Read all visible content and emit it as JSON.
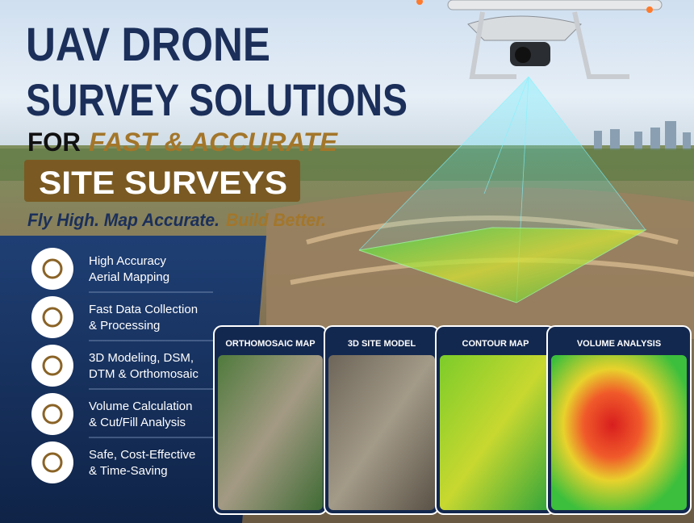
{
  "headline": {
    "line1": "UAV DRONE",
    "line2": "SURVEY SOLUTIONS",
    "line3_prefix": "FOR",
    "line3_highlight": "FAST & ACCURATE",
    "banner": "SITE SURVEYS"
  },
  "tagline": {
    "main": "Fly High. Map Accurate.",
    "highlight": "Build Better."
  },
  "features": [
    {
      "lines": [
        "High Accuracy",
        "Aerial Mapping"
      ]
    },
    {
      "lines": [
        "Fast Data Collection",
        "& Processing"
      ]
    },
    {
      "lines": [
        "3D Modeling, DSM,",
        "DTM & Orthomosaic"
      ]
    },
    {
      "lines": [
        "Volume Calculation",
        "& Cut/Fill Analysis"
      ]
    },
    {
      "lines": [
        "Safe, Cost-Effective",
        "& Time-Saving"
      ]
    }
  ],
  "cards": [
    {
      "title": "ORTHOMOSAIC MAP"
    },
    {
      "title": "3D SITE MODEL"
    },
    {
      "title": "CONTOUR MAP"
    },
    {
      "title": "VOLUME ANALYSIS"
    }
  ]
}
